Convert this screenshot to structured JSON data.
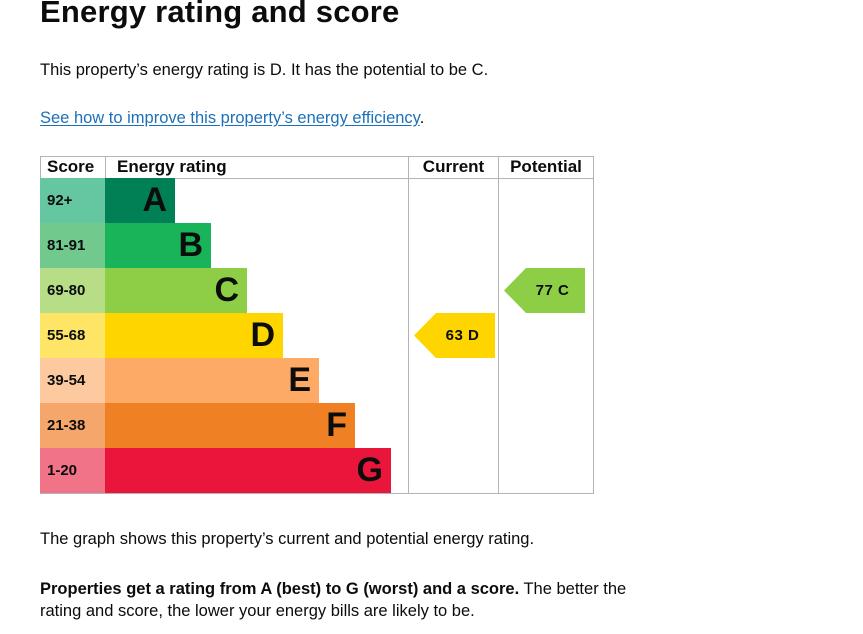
{
  "page": {
    "title": "Energy rating and score",
    "intro": "This property’s energy rating is D. It has the potential to be C.",
    "link_text": "See how to improve this property’s energy efficiency",
    "link_suffix": ".",
    "graph_description": "The graph shows this property’s current and potential energy rating.",
    "rating_info_bold": "Properties get a rating from A (best) to G (worst) and a score.",
    "rating_info_rest": " The better the rating and score, the lower your energy bills are likely to be."
  },
  "chart_data": {
    "type": "table",
    "headers": {
      "score": "Score",
      "rating": "Energy rating",
      "current": "Current",
      "potential": "Potential"
    },
    "bands": [
      {
        "score": "92+",
        "letter": "A",
        "color": "#008054",
        "score_color": "#64c7a1"
      },
      {
        "score": "81-91",
        "letter": "B",
        "color": "#19b459",
        "score_color": "#72c98e"
      },
      {
        "score": "69-80",
        "letter": "C",
        "color": "#8dce46",
        "score_color": "#b7dd86"
      },
      {
        "score": "55-68",
        "letter": "D",
        "color": "#ffd500",
        "score_color": "#ffe566"
      },
      {
        "score": "39-54",
        "letter": "E",
        "color": "#fcaa65",
        "score_color": "#fdc99e"
      },
      {
        "score": "21-38",
        "letter": "F",
        "color": "#ef8023",
        "score_color": "#f5a66a"
      },
      {
        "score": "1-20",
        "letter": "G",
        "color": "#e9153b",
        "score_color": "#f07388"
      }
    ],
    "current": {
      "value": 63,
      "letter": "D",
      "label": "63  D",
      "color": "#ffd500"
    },
    "potential": {
      "value": 77,
      "letter": "C",
      "label": "77  C",
      "color": "#8dce46"
    }
  }
}
